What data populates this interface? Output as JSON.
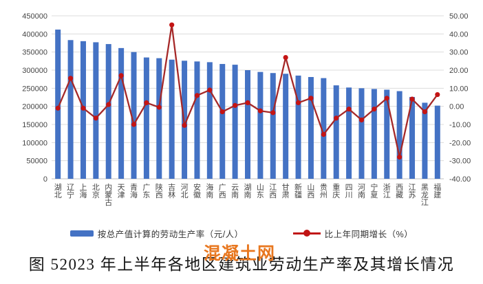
{
  "chart_data": {
    "type": "bar+line-combo",
    "title": "图 52023 年上半年各地区建筑业劳动生产率及其增长情况",
    "watermark": "混凝土网",
    "categories": [
      "湖北",
      "辽宁",
      "上海",
      "北京",
      "内蒙古",
      "天津",
      "青海",
      "广东",
      "陕西",
      "吉林",
      "河北",
      "安徽",
      "海南",
      "广西",
      "云南",
      "湖南",
      "山东",
      "江西",
      "甘肃",
      "新疆",
      "山西",
      "贵州",
      "重庆",
      "四川",
      "河南",
      "宁夏",
      "浙江",
      "西藏",
      "江苏",
      "黑龙江",
      "福建"
    ],
    "series": [
      {
        "name": "按总产值计算的劳动生产率（元/人）",
        "type": "bar",
        "axis": "left",
        "color": "#4472C4",
        "values": [
          412000,
          383000,
          380000,
          377000,
          372000,
          361000,
          350000,
          335000,
          333000,
          329000,
          326000,
          324000,
          322000,
          317000,
          315000,
          300000,
          295000,
          292000,
          290000,
          285000,
          281000,
          278000,
          258000,
          252000,
          250000,
          248000,
          246000,
          242000,
          226000,
          210000,
          202000
        ]
      },
      {
        "name": "比上年同期增长（%）",
        "type": "line",
        "axis": "right",
        "color": "#A52828",
        "marker_color": "#C41414",
        "values": [
          -1,
          15.5,
          -1,
          -6.5,
          1,
          17,
          -10,
          2,
          -0.5,
          45,
          -10.5,
          6,
          9,
          -3,
          0.5,
          2,
          -2.5,
          -3.5,
          27,
          2,
          4.5,
          -15.5,
          -6.5,
          -1.5,
          -7.5,
          -1.5,
          4.5,
          -28,
          4,
          -3,
          6.5
        ]
      }
    ],
    "left_axis": {
      "min": 0,
      "max": 450000,
      "step": 50000,
      "tick_labels": [
        "0",
        "50000",
        "100000",
        "150000",
        "200000",
        "250000",
        "300000",
        "350000",
        "400000",
        "450000"
      ]
    },
    "right_axis": {
      "min": -40,
      "max": 50,
      "step": 10,
      "tick_labels": [
        "-40.00",
        "-30.00",
        "-20.00",
        "-10.00",
        "0.00",
        "10.00",
        "20.00",
        "30.00",
        "40.00",
        "50.00"
      ]
    },
    "grid": true,
    "gridline_color": "#DCDCDC",
    "zero_line_color": "#BFBFBF",
    "axis_text_color": "#454545",
    "legend_position": "bottom"
  },
  "legend": {
    "bar_label": "按总产值计算的劳动生产率（元/人）",
    "line_label": "比上年同期增长（%）"
  },
  "watermark": {
    "text": "混凝土网",
    "color": "#E8771F"
  },
  "footer": {
    "title": "图 52023 年上半年各地区建筑业劳动生产率及其增长情况"
  }
}
